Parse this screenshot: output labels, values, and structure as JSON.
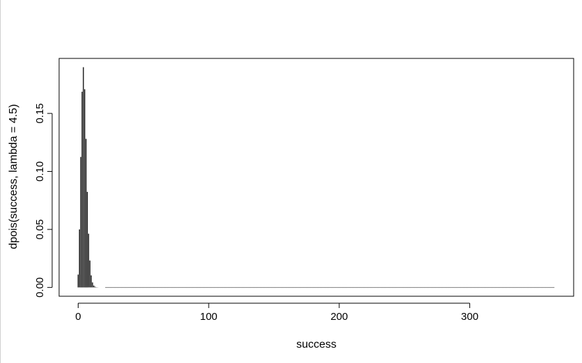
{
  "chart_data": {
    "type": "bar",
    "title": "",
    "xlabel": "success",
    "ylabel": "dpois(success, lambda = 4.5)",
    "lambda": 4.5,
    "x": [
      0,
      1,
      2,
      3,
      4,
      5,
      6,
      7,
      8,
      9,
      10,
      11,
      12,
      13,
      14,
      15,
      16,
      17,
      18,
      19,
      20
    ],
    "values": [
      0.0111,
      0.05,
      0.1125,
      0.1687,
      0.1898,
      0.1708,
      0.1281,
      0.0824,
      0.0463,
      0.0232,
      0.0104,
      0.0043,
      0.0016,
      0.0006,
      0.0002,
      0.0001,
      0.0,
      0.0,
      0.0,
      0.0,
      0.0
    ],
    "x_range": [
      0,
      365
    ],
    "near_zero_from": 21,
    "xlim": [
      -14.6,
      379.6
    ],
    "ylim": [
      -0.0076,
      0.1974
    ],
    "x_ticks": [
      "0",
      "100",
      "200",
      "300"
    ],
    "y_ticks": [
      "0.00",
      "0.05",
      "0.10",
      "0.15"
    ],
    "grid": false,
    "legend": "none",
    "color": "#000000"
  }
}
